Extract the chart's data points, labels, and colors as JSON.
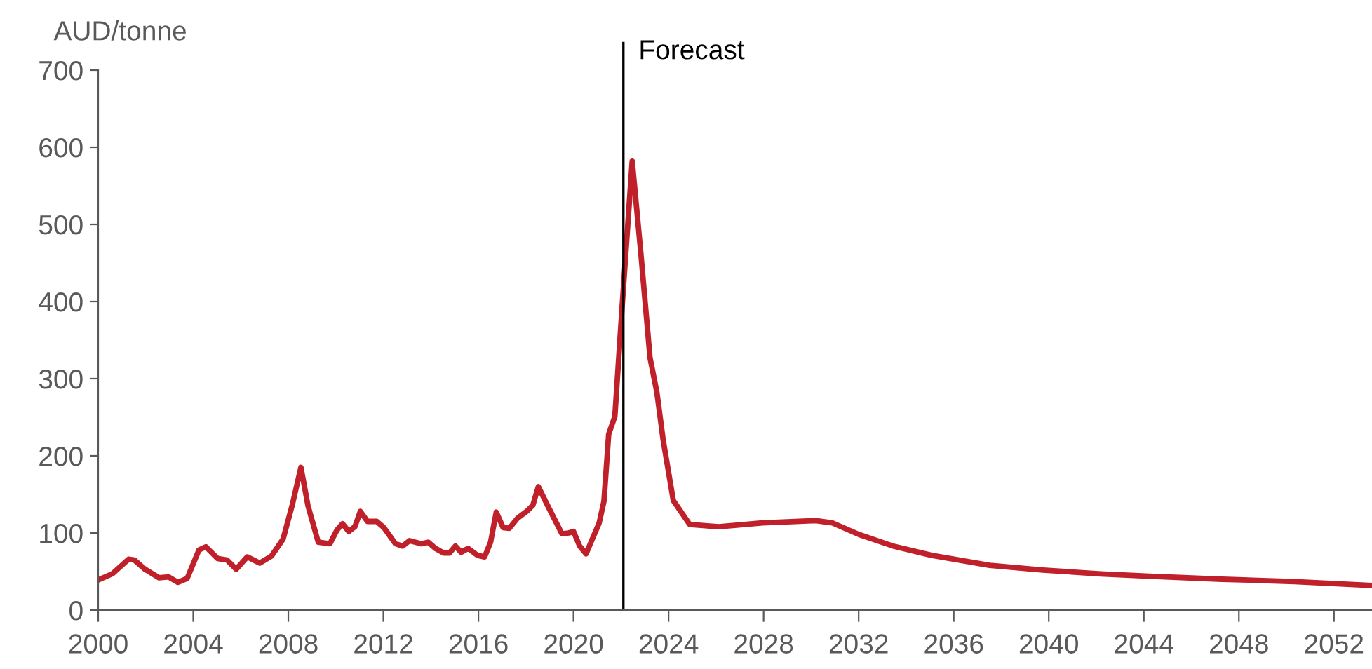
{
  "chart_data": {
    "type": "line",
    "ylabel": "AUD/tonne",
    "x": [
      2000,
      2000.59,
      2001.28,
      2001.52,
      2001.97,
      2002.56,
      2002.96,
      2003.35,
      2003.74,
      2004.24,
      2004.53,
      2005.02,
      2005.42,
      2005.81,
      2006.27,
      2006.8,
      2007.29,
      2007.78,
      2008.18,
      2008.53,
      2008.83,
      2009.26,
      2009.75,
      2010.05,
      2010.28,
      2010.54,
      2010.8,
      2011.03,
      2011.33,
      2011.72,
      2012.02,
      2012.51,
      2012.81,
      2013.1,
      2013.6,
      2013.89,
      2014.19,
      2014.54,
      2014.78,
      2015.03,
      2015.27,
      2015.57,
      2015.96,
      2016.26,
      2016.51,
      2016.75,
      2017.04,
      2017.3,
      2017.64,
      2018.03,
      2018.29,
      2018.52,
      2018.92,
      2019.51,
      2019.8,
      2020.0,
      2020.26,
      2020.53,
      2021.08,
      2021.28,
      2021.48,
      2021.74,
      2022.04,
      2022.47,
      2022.83,
      2023.22,
      2023.51,
      2023.77,
      2024.2,
      2024.89,
      2026.11,
      2027.95,
      2030.19,
      2030.9,
      2032.02,
      2033.45,
      2035.07,
      2037.51,
      2039.75,
      2042.19,
      2044.23,
      2047.28,
      2050.34,
      2053.6
    ],
    "series": [
      {
        "color": "#c0202a",
        "values": [
          39,
          47,
          66,
          65,
          53,
          42,
          43,
          36,
          41,
          78,
          82,
          67,
          65,
          53,
          69,
          61,
          70,
          92,
          138,
          185,
          135,
          88,
          86,
          104,
          112,
          102,
          108,
          128,
          115,
          115,
          107,
          86,
          83,
          90,
          86,
          88,
          80,
          74,
          74,
          83,
          75,
          80,
          71,
          69,
          88,
          127,
          107,
          106,
          119,
          128,
          136,
          160,
          135,
          99,
          100,
          102,
          83,
          73,
          113,
          141,
          228,
          251,
          391,
          582,
          464,
          327,
          282,
          221,
          142,
          111,
          108,
          113,
          116,
          113,
          98,
          83,
          71,
          58,
          52,
          47,
          44,
          40,
          37,
          32
        ]
      }
    ],
    "xlim": [
      2000,
      2053.6
    ],
    "xticks": [
      2000,
      2004,
      2008,
      2012,
      2016,
      2020,
      2024,
      2028,
      2032,
      2036,
      2040,
      2044,
      2048,
      2052
    ],
    "ylim": [
      0,
      700
    ],
    "yticks": [
      0,
      100,
      200,
      300,
      400,
      500,
      600,
      700
    ],
    "ref_lines": [
      {
        "axis": "x",
        "value": 2022.1,
        "label": "Forecast",
        "color": "#000000"
      }
    ],
    "grid": false,
    "legend": false,
    "marker": "none",
    "line_style": "solid"
  }
}
